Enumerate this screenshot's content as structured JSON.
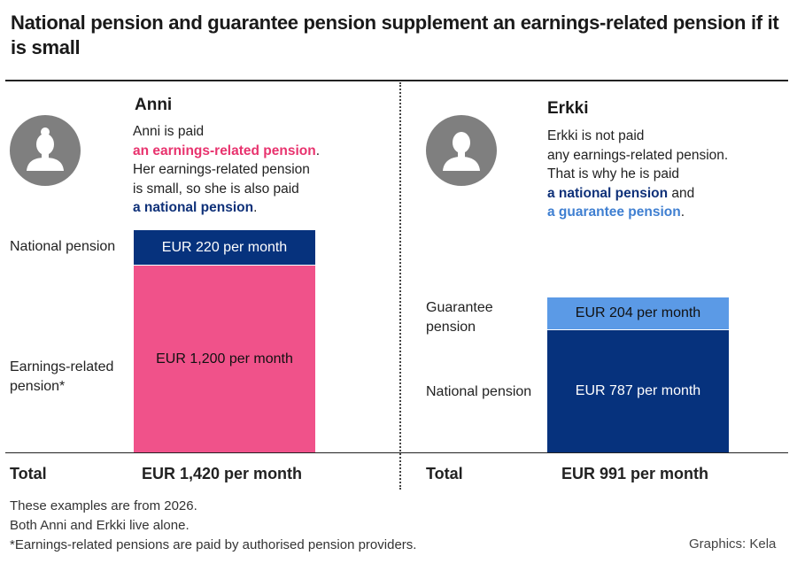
{
  "title": "National pension and guarantee pension supplement an earnings-related pension if it is small",
  "panels": {
    "anni": {
      "name": "Anni",
      "desc": {
        "line1": "Anni is paid",
        "hl1": "an earnings-related pension",
        "after_hl1": ".",
        "line3": "Her earnings-related pension",
        "line4": "is small, so she is also paid",
        "hl2": "a national pension",
        "after_hl2": "."
      },
      "labels": {
        "national": "National pension",
        "earnings": "Earnings-related pension*"
      },
      "total_label": "Total",
      "total_value": "EUR 1,420 per month"
    },
    "erkki": {
      "name": "Erkki",
      "desc": {
        "line1": "Erkki is not paid",
        "line2": "any earnings-related pension.",
        "line3": "That is why he is paid",
        "hl1": "a national pension",
        "after_hl1": " and",
        "hl2": "a guarantee pension",
        "after_hl2": "."
      },
      "labels": {
        "guarantee": "Guarantee pension",
        "national": "National pension"
      },
      "total_label": "Total",
      "total_value": "EUR 991 per month"
    }
  },
  "chart_data": {
    "type": "bar",
    "stacked": true,
    "unit": "EUR per month",
    "categories": [
      "Anni",
      "Erkki"
    ],
    "series": [
      {
        "name": "Earnings-related pension*",
        "values": [
          1200,
          0
        ],
        "color": "#f0528a",
        "labels": [
          "EUR 1,200 per month",
          ""
        ]
      },
      {
        "name": "National pension",
        "values": [
          220,
          787
        ],
        "color": "#06327d",
        "labels": [
          "EUR 220 per month",
          "EUR 787 per month"
        ]
      },
      {
        "name": "Guarantee pension",
        "values": [
          0,
          204
        ],
        "color": "#5b9ae6",
        "labels": [
          "",
          "EUR 204 per month"
        ]
      }
    ],
    "totals": [
      1420,
      991
    ]
  },
  "footer": {
    "note1": "These examples are from 2026.",
    "note2": "Both Anni and Erkki live alone.",
    "note3": "*Earnings-related pensions are paid by authorised pension providers.",
    "credit": "Graphics: Kela"
  }
}
